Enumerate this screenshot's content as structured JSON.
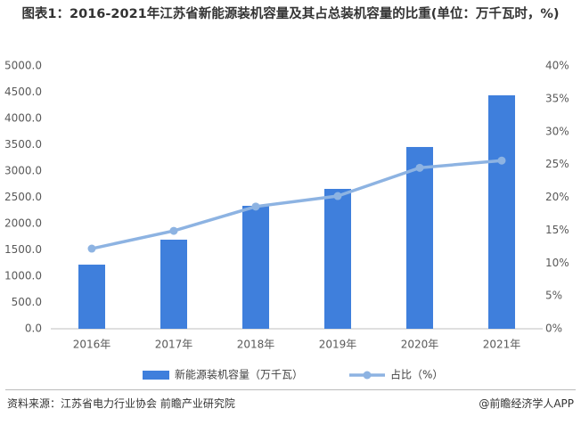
{
  "chart_data": {
    "type": "bar",
    "title": "图表1：2016-2021年江苏省新能源装机容量及其占总装机容量的比重(单位：万千瓦时，%)",
    "categories": [
      "2016年",
      "2017年",
      "2018年",
      "2019年",
      "2020年",
      "2021年"
    ],
    "series": [
      {
        "name": "新能源装机容量（万千瓦）",
        "type": "bar",
        "color": "#3f7fdc",
        "values": [
          1220,
          1695,
          2339,
          2661,
          3458,
          4441
        ]
      },
      {
        "name": "占比（%）",
        "type": "line",
        "axis": "y2",
        "color": "#8db3e2",
        "values": [
          12.2,
          14.9,
          18.6,
          20.2,
          24.5,
          25.6
        ]
      }
    ],
    "ylim": [
      0,
      5000
    ],
    "yticks": [
      {
        "value": 0,
        "label": "0.0"
      },
      {
        "value": 500,
        "label": "500.0"
      },
      {
        "value": 1000,
        "label": "1000.0"
      },
      {
        "value": 1500,
        "label": "1500.0"
      },
      {
        "value": 2000,
        "label": "2000.0"
      },
      {
        "value": 2500,
        "label": "2500.0"
      },
      {
        "value": 3000,
        "label": "3000.0"
      },
      {
        "value": 3500,
        "label": "3500.0"
      },
      {
        "value": 4000,
        "label": "4000.0"
      },
      {
        "value": 4500,
        "label": "4500.0"
      },
      {
        "value": 5000,
        "label": "5000.0"
      }
    ],
    "y2lim": [
      0,
      40
    ],
    "y2ticks": [
      {
        "value": 0,
        "label": "0%"
      },
      {
        "value": 5,
        "label": "5%"
      },
      {
        "value": 10,
        "label": "10%"
      },
      {
        "value": 15,
        "label": "15%"
      },
      {
        "value": 20,
        "label": "20%"
      },
      {
        "value": 25,
        "label": "25%"
      },
      {
        "value": 30,
        "label": "30%"
      },
      {
        "value": 35,
        "label": "35%"
      },
      {
        "value": 40,
        "label": "40%"
      }
    ],
    "grid": false,
    "legend": "bottom",
    "source": "资料来源：江苏省电力行业协会 前瞻产业研究院",
    "brand": "@前瞻经济学人APP"
  }
}
